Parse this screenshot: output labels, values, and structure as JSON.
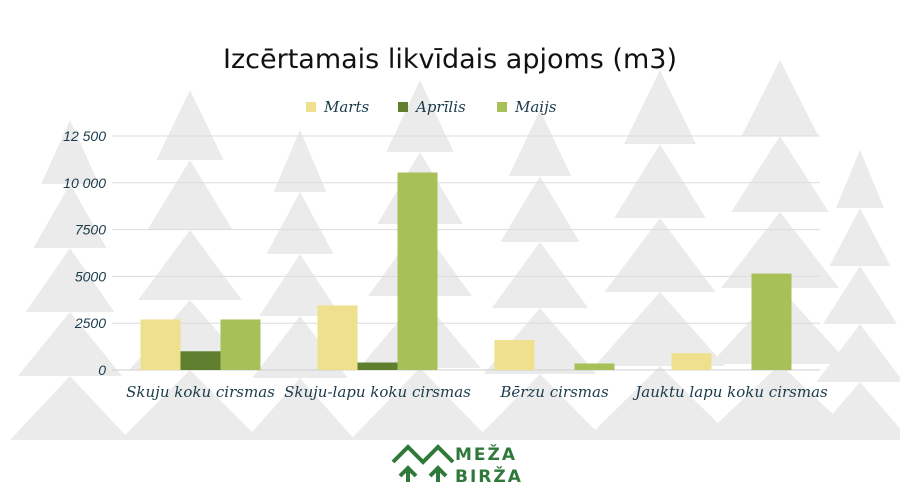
{
  "chart_data": {
    "type": "bar",
    "title": "Izcērtamais likvīdais apjoms (m3)",
    "categories": [
      "Skuju koku cirsmas",
      "Skuju-lapu koku cirsmas",
      "Bērzu cirsmas",
      "Jauktu lapu koku cirsmas"
    ],
    "series": [
      {
        "name": "Marts",
        "color": "#efe08e",
        "values": [
          2700,
          3450,
          1600,
          900
        ]
      },
      {
        "name": "Aprīlis",
        "color": "#5f7f2f",
        "values": [
          1000,
          400,
          0,
          0
        ]
      },
      {
        "name": "Maijs",
        "color": "#a8c058",
        "values": [
          2700,
          10550,
          350,
          5150
        ]
      }
    ],
    "y_ticks": [
      {
        "value": 0,
        "label": "0"
      },
      {
        "value": 2500,
        "label": "2500"
      },
      {
        "value": 5000,
        "label": "5000"
      },
      {
        "value": 7500,
        "label": "7500"
      },
      {
        "value": 10000,
        "label": "10 000"
      },
      {
        "value": 12500,
        "label": "12 500"
      }
    ],
    "ylim": [
      0,
      12500
    ],
    "grid": true,
    "legend_position": "top-center"
  },
  "logo": {
    "line1": "MEŽA",
    "line2": "BIRŽA",
    "icon": "forest-logo-icon",
    "color": "#2f7a3a"
  }
}
